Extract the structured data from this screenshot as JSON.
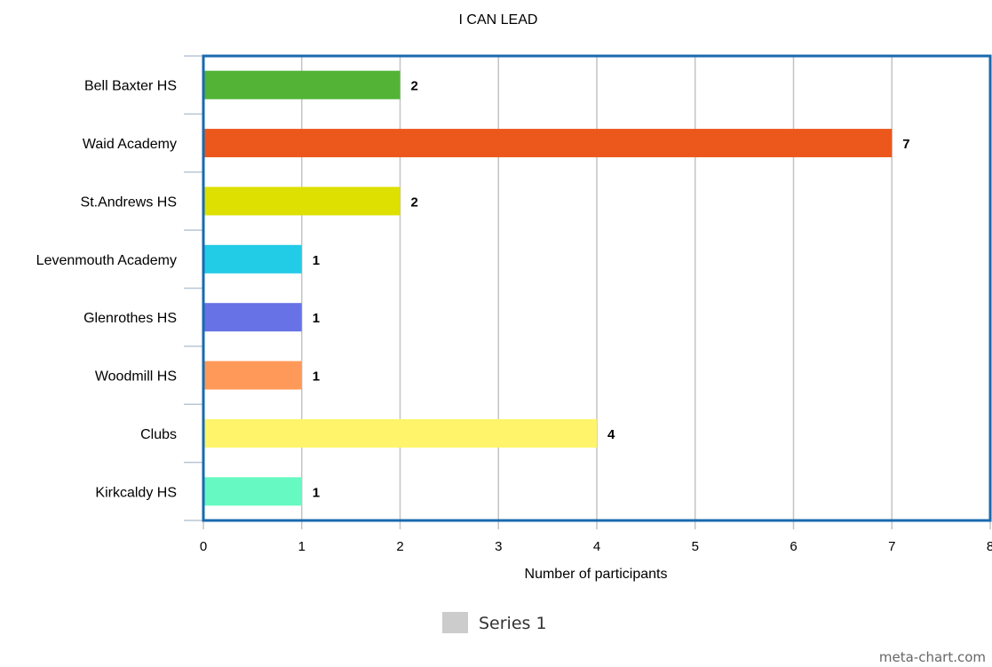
{
  "chart_data": {
    "type": "bar",
    "orientation": "horizontal",
    "title": "I CAN LEAD",
    "xlabel": "Number of participants",
    "ylabel": "",
    "xlim": [
      0,
      8
    ],
    "x_ticks": [
      "0",
      "1",
      "2",
      "3",
      "4",
      "5",
      "6",
      "7",
      "8"
    ],
    "grid": "vertical",
    "categories": [
      "Bell Baxter HS",
      "Waid Academy",
      "St.Andrews HS",
      "Levenmouth Academy",
      "Glenrothes HS",
      "Woodmill HS",
      "Clubs",
      "Kirkcaldy HS"
    ],
    "series": [
      {
        "name": "Series 1",
        "values": [
          2,
          7,
          2,
          1,
          1,
          1,
          4,
          1
        ],
        "colors": [
          "#52b337",
          "#ec581c",
          "#dde000",
          "#22cbe6",
          "#6672e6",
          "#ff9959",
          "#fff46a",
          "#66f9c1"
        ]
      }
    ],
    "data_labels": [
      "2",
      "7",
      "2",
      "1",
      "1",
      "1",
      "4",
      "1"
    ],
    "legend": {
      "position": "bottom-center",
      "label": "Series 1",
      "swatch_color": "#cccccc"
    },
    "frame_color": "#1a6aaf",
    "grid_color": "#c4c4c4"
  },
  "watermark": "meta-chart.com"
}
